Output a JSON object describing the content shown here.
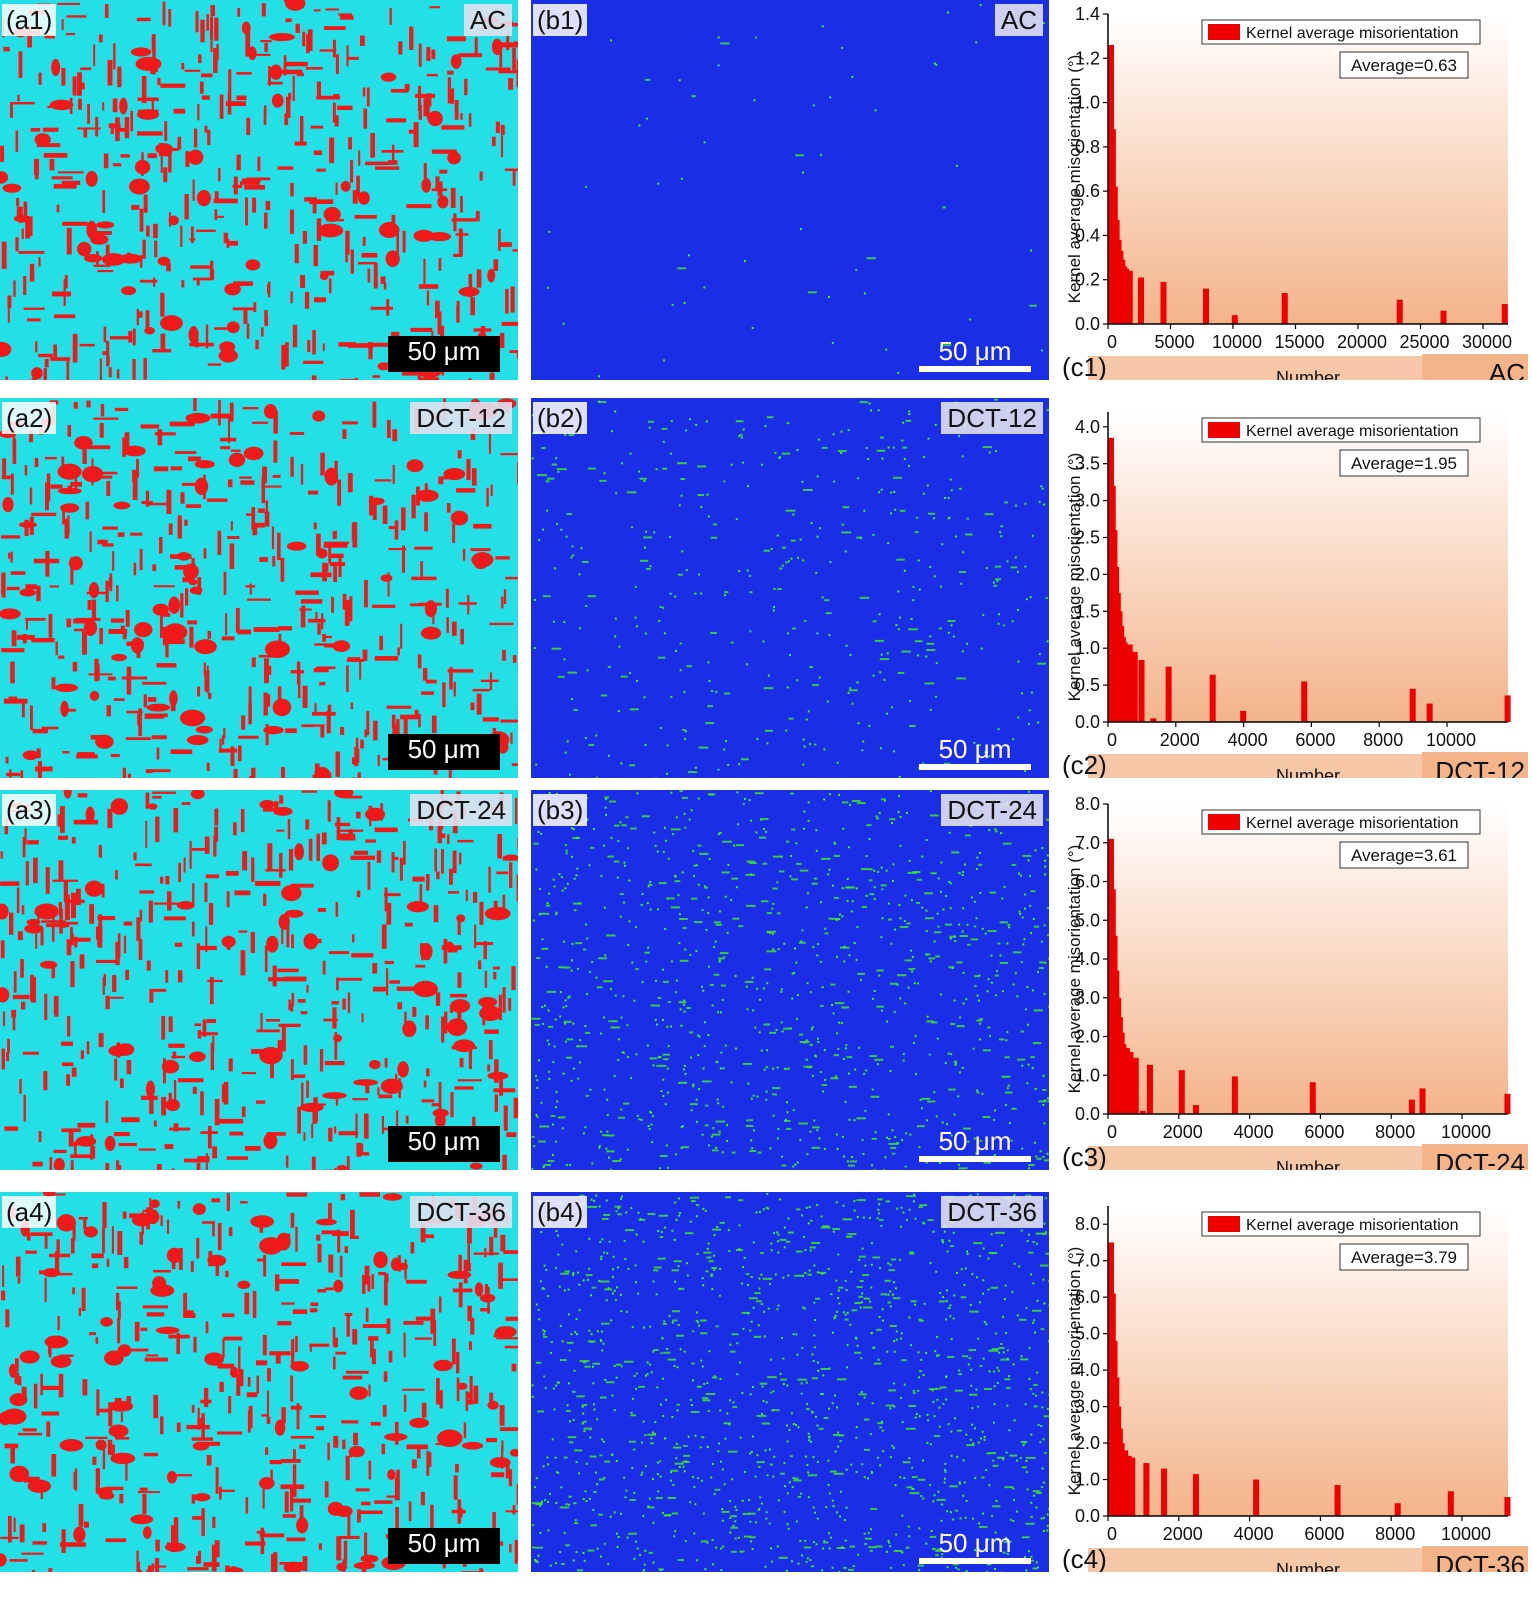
{
  "colors": {
    "phase_bg": "#22e0e6",
    "phase_fg": "#ee1a1a",
    "kam_bg": "#1a2ee6",
    "kam_fg": "#44ee22",
    "bar": "#ee0000",
    "chart_bg_top": "#ffffff",
    "chart_bg_bottom": "#f3b48a"
  },
  "panels": [
    {
      "phase_label": "(a1)",
      "kam_label": "(b1)",
      "chart_label": "(c1)",
      "sample": "AC",
      "scale_bar": "50 μm",
      "green_density": 0.02
    },
    {
      "phase_label": "(a2)",
      "kam_label": "(b2)",
      "chart_label": "(c2)",
      "sample": "DCT-12",
      "scale_bar": "50 μm",
      "green_density": 0.14
    },
    {
      "phase_label": "(a3)",
      "kam_label": "(b3)",
      "chart_label": "(c3)",
      "sample": "DCT-24",
      "scale_bar": "50 μm",
      "green_density": 0.32
    },
    {
      "phase_label": "(a4)",
      "kam_label": "(b4)",
      "chart_label": "(c4)",
      "sample": "DCT-36",
      "scale_bar": "50 μm",
      "green_density": 0.42
    }
  ],
  "chart_data": [
    {
      "type": "bar",
      "xlabel": "Number",
      "ylabel": "Kernel average misorientation (°)",
      "legend": "Kernel average misorientation",
      "legend_position": "top-right",
      "average_label": "Average=0.63",
      "xlim": [
        0,
        32000
      ],
      "ylim": [
        0,
        1.4
      ],
      "xticks": [
        "0",
        "5000",
        "10000",
        "15000",
        "20000",
        "25000",
        "30000"
      ],
      "yticks": [
        "0.0",
        "0.2",
        "0.4",
        "0.6",
        "0.8",
        "1.0",
        "1.2",
        "1.4"
      ],
      "bars": [
        [
          0,
          1.26
        ],
        [
          150,
          0.88
        ],
        [
          300,
          0.62
        ],
        [
          450,
          0.47
        ],
        [
          600,
          0.38
        ],
        [
          750,
          0.33
        ],
        [
          900,
          0.29
        ],
        [
          1050,
          0.26
        ],
        [
          1200,
          0.25
        ],
        [
          1500,
          0.24
        ],
        [
          2400,
          0.21
        ],
        [
          4200,
          0.19
        ],
        [
          7600,
          0.16
        ],
        [
          9900,
          0.04
        ],
        [
          13900,
          0.14
        ],
        [
          23100,
          0.11
        ],
        [
          26600,
          0.06
        ],
        [
          31500,
          0.09
        ]
      ]
    },
    {
      "type": "bar",
      "xlabel": "Number",
      "ylabel": "Kernel average misorientation (°)",
      "legend": "Kernel average misorientation",
      "legend_position": "top-right",
      "average_label": "Average=1.95",
      "xlim": [
        0,
        11800
      ],
      "ylim": [
        0,
        4.2
      ],
      "xticks": [
        "0",
        "2000",
        "4000",
        "6000",
        "8000",
        "10000"
      ],
      "yticks": [
        "0.0",
        "0.5",
        "1.0",
        "1.5",
        "2.0",
        "2.5",
        "3.0",
        "3.5",
        "4.0"
      ],
      "bars": [
        [
          0,
          3.85
        ],
        [
          50,
          3.2
        ],
        [
          100,
          2.6
        ],
        [
          150,
          2.1
        ],
        [
          200,
          1.75
        ],
        [
          250,
          1.5
        ],
        [
          300,
          1.3
        ],
        [
          350,
          1.15
        ],
        [
          400,
          1.08
        ],
        [
          550,
          1.05
        ],
        [
          700,
          0.95
        ],
        [
          900,
          0.84
        ],
        [
          1250,
          0.05
        ],
        [
          1700,
          0.75
        ],
        [
          3000,
          0.64
        ],
        [
          3900,
          0.15
        ],
        [
          5700,
          0.55
        ],
        [
          8900,
          0.45
        ],
        [
          9400,
          0.25
        ],
        [
          11700,
          0.36
        ]
      ]
    },
    {
      "type": "bar",
      "xlabel": "Number",
      "ylabel": "Kernel average misorientation (°)",
      "legend": "Kernel average misorientation",
      "legend_position": "top-right",
      "average_label": "Average=3.61",
      "xlim": [
        0,
        11300
      ],
      "ylim": [
        0,
        8.0
      ],
      "xticks": [
        "0",
        "2000",
        "4000",
        "6000",
        "8000",
        "10000"
      ],
      "yticks": [
        "0.0",
        "1.0",
        "2.0",
        "3.0",
        "4.0",
        "5.0",
        "6.0",
        "7.0",
        "8.0"
      ],
      "bars": [
        [
          0,
          7.1
        ],
        [
          50,
          5.8
        ],
        [
          100,
          4.6
        ],
        [
          150,
          3.7
        ],
        [
          200,
          3.0
        ],
        [
          250,
          2.5
        ],
        [
          300,
          2.1
        ],
        [
          350,
          1.8
        ],
        [
          450,
          1.7
        ],
        [
          550,
          1.6
        ],
        [
          700,
          1.45
        ],
        [
          900,
          0.08
        ],
        [
          1100,
          1.27
        ],
        [
          2000,
          1.13
        ],
        [
          2400,
          0.23
        ],
        [
          3500,
          0.97
        ],
        [
          5700,
          0.82
        ],
        [
          8500,
          0.37
        ],
        [
          8800,
          0.66
        ],
        [
          11200,
          0.52
        ]
      ]
    },
    {
      "type": "bar",
      "xlabel": "Number",
      "ylabel": "Kernel average misorientation (°)",
      "legend": "Kernel average misorientation",
      "legend_position": "top-right",
      "average_label": "Average=3.79",
      "xlim": [
        0,
        11300
      ],
      "ylim": [
        0,
        8.5
      ],
      "xticks": [
        "0",
        "2000",
        "4000",
        "6000",
        "8000",
        "10000"
      ],
      "yticks": [
        "0.0",
        "1.0",
        "2.0",
        "3.0",
        "4.0",
        "5.0",
        "6.0",
        "7.0",
        "8.0"
      ],
      "bars": [
        [
          0,
          7.5
        ],
        [
          50,
          6.1
        ],
        [
          100,
          4.8
        ],
        [
          150,
          3.8
        ],
        [
          200,
          3.0
        ],
        [
          250,
          2.4
        ],
        [
          300,
          2.0
        ],
        [
          400,
          1.8
        ],
        [
          500,
          1.65
        ],
        [
          600,
          1.6
        ],
        [
          1000,
          1.45
        ],
        [
          1500,
          1.3
        ],
        [
          2400,
          1.15
        ],
        [
          4100,
          1.0
        ],
        [
          6400,
          0.85
        ],
        [
          8100,
          0.35
        ],
        [
          9600,
          0.68
        ],
        [
          11200,
          0.52
        ]
      ]
    }
  ]
}
